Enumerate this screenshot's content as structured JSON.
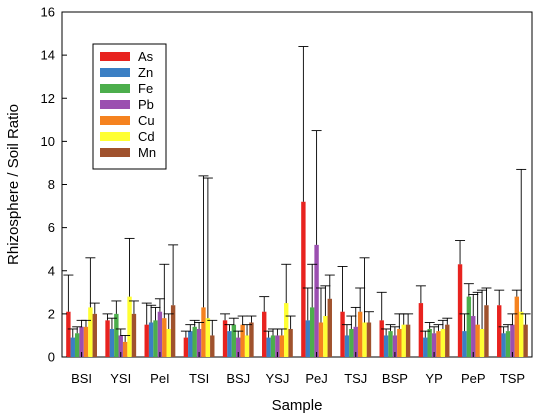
{
  "chart_data": {
    "type": "bar",
    "xlabel": "Sample",
    "ylabel": "Rhizosphere / Soil Ratio",
    "ylim": [
      0,
      16
    ],
    "yticks": [
      0,
      2,
      4,
      6,
      8,
      10,
      12,
      14,
      16
    ],
    "grid": false,
    "legend_position": "top-left",
    "error_bars": true,
    "categories": [
      "BSI",
      "YSI",
      "PeI",
      "TSI",
      "BSJ",
      "YSJ",
      "PeJ",
      "TSJ",
      "BSP",
      "YP",
      "PeP",
      "TSP"
    ],
    "series": [
      {
        "name": "As",
        "color": "#e8231f",
        "values": [
          2.1,
          1.7,
          1.5,
          0.9,
          1.7,
          2.1,
          7.2,
          2.1,
          1.7,
          2.5,
          4.3,
          2.4
        ],
        "errors": [
          1.7,
          0.3,
          1.0,
          0.3,
          0.3,
          0.7,
          7.2,
          2.1,
          1.3,
          0.8,
          1.1,
          0.7
        ]
      },
      {
        "name": "Zn",
        "color": "#3b7fc4",
        "values": [
          0.9,
          1.3,
          1.6,
          1.2,
          1.2,
          0.9,
          1.7,
          1.0,
          1.0,
          0.9,
          1.2,
          1.1
        ],
        "errors": [
          0.4,
          0.5,
          0.8,
          0.3,
          0.3,
          0.3,
          1.5,
          0.5,
          0.3,
          0.3,
          0.8,
          0.3
        ]
      },
      {
        "name": "Fe",
        "color": "#4cae4c",
        "values": [
          1.1,
          2.0,
          1.7,
          1.4,
          1.5,
          1.0,
          2.3,
          1.3,
          1.2,
          1.3,
          2.8,
          1.2
        ],
        "errors": [
          0.3,
          0.6,
          0.6,
          0.3,
          0.3,
          0.3,
          2.0,
          0.6,
          0.3,
          0.3,
          0.6,
          0.3
        ]
      },
      {
        "name": "Pb",
        "color": "#9b4fb0",
        "values": [
          1.4,
          1.0,
          2.1,
          1.3,
          0.9,
          1.0,
          5.2,
          1.4,
          1.0,
          1.1,
          1.9,
          1.5
        ],
        "errors": [
          0.3,
          0.3,
          0.6,
          0.3,
          0.3,
          0.3,
          5.3,
          0.9,
          0.4,
          0.3,
          1.0,
          0.5
        ]
      },
      {
        "name": "Cu",
        "color": "#f5821f",
        "values": [
          1.4,
          0.7,
          1.8,
          2.3,
          1.5,
          1.0,
          1.6,
          2.1,
          1.3,
          1.2,
          1.5,
          2.8
        ],
        "errors": [
          0.3,
          0.3,
          2.5,
          6.1,
          0.4,
          0.3,
          1.6,
          1.1,
          0.7,
          0.3,
          1.5,
          0.3
        ]
      },
      {
        "name": "Cd",
        "color": "#ffff33",
        "values": [
          2.3,
          2.8,
          1.3,
          1.8,
          1.0,
          2.5,
          1.9,
          1.6,
          1.5,
          1.3,
          1.3,
          2.1
        ],
        "errors": [
          2.3,
          2.7,
          0.7,
          6.5,
          0.5,
          1.8,
          1.4,
          3.0,
          0.5,
          0.4,
          1.8,
          6.6
        ]
      },
      {
        "name": "Mn",
        "color": "#a0522d",
        "values": [
          2.0,
          2.0,
          2.4,
          1.0,
          1.6,
          1.3,
          2.7,
          1.6,
          1.5,
          1.5,
          2.4,
          1.5
        ],
        "errors": [
          0.5,
          0.6,
          2.8,
          0.7,
          0.3,
          0.6,
          1.1,
          0.5,
          0.5,
          0.3,
          0.8,
          0.5
        ]
      }
    ]
  }
}
